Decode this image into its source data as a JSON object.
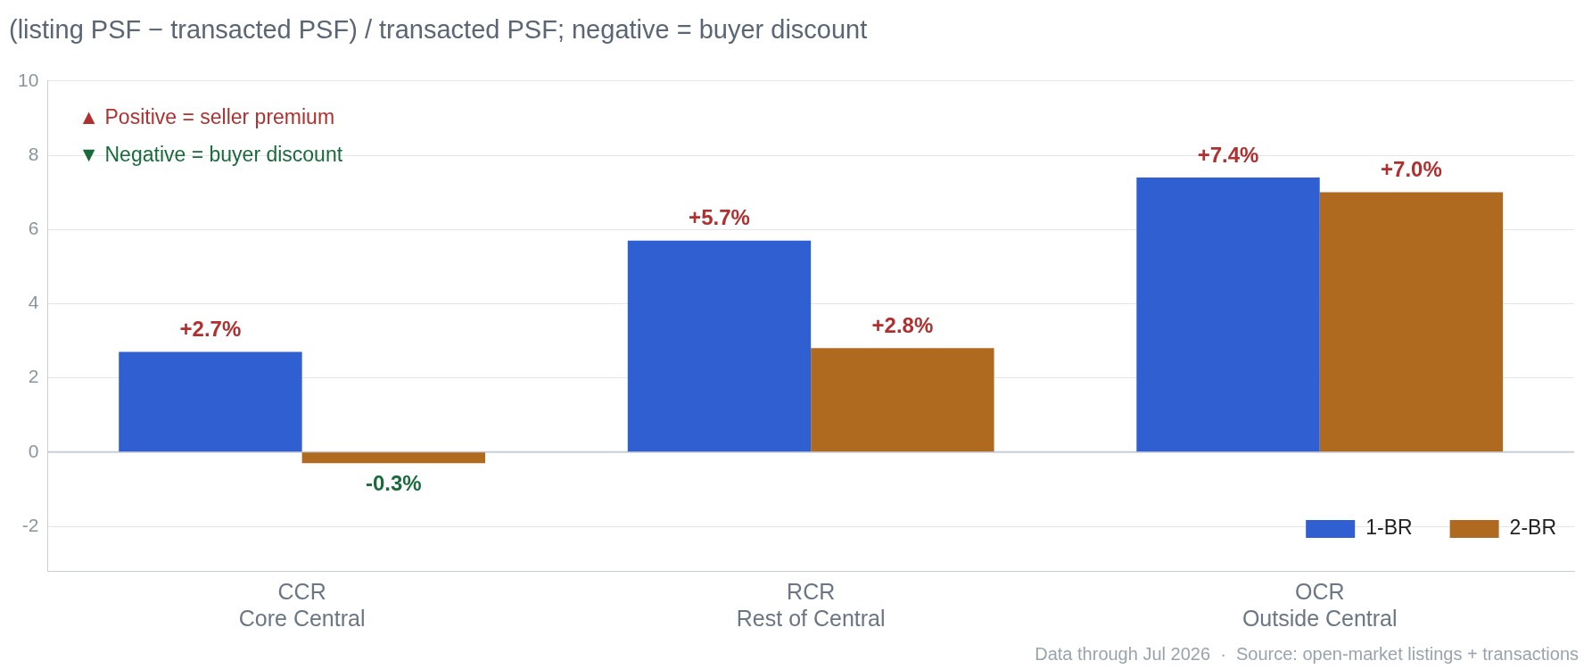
{
  "chart_data": {
    "type": "bar",
    "title": "(listing PSF − transacted PSF) / transacted PSF; negative = buyer discount",
    "categories": [
      "CCR\nCore Central",
      "RCR\nRest of Central",
      "OCR\nOutside Central"
    ],
    "series": [
      {
        "name": "1-BR",
        "color": "#2f5fd0",
        "values": [
          2.7,
          5.7,
          7.4
        ],
        "value_labels": [
          "+2.7%",
          "+5.7%",
          "+7.4%"
        ]
      },
      {
        "name": "2-BR",
        "color": "#b06a20",
        "values": [
          -0.3,
          2.8,
          7.0
        ],
        "value_labels": [
          "-0.3%",
          "+2.8%",
          "+7.0%"
        ]
      }
    ],
    "ylim": [
      -3.2,
      10
    ],
    "yticks": [
      -2,
      0,
      2,
      4,
      6,
      8,
      10
    ],
    "grid": "y",
    "legend": "bottom right",
    "annotations": [
      "▲ Positive = seller premium",
      "▼ Negative = buyer discount",
      "Data through Jul 2026  ·  Source: open-market listings + transactions"
    ]
  }
}
